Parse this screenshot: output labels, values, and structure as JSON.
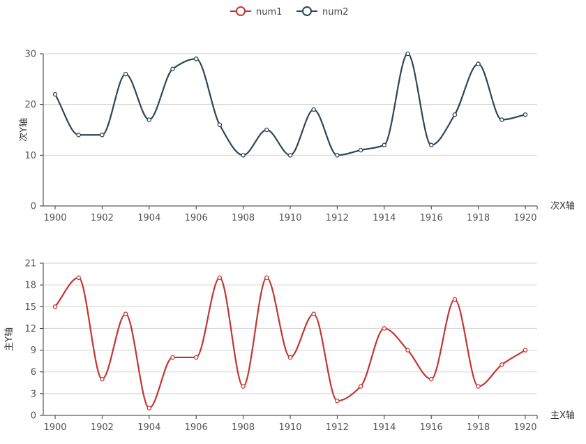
{
  "legend": [
    {
      "name": "num1",
      "color": "#c23531"
    },
    {
      "name": "num2",
      "color": "#2f4554"
    }
  ],
  "chart_data": [
    {
      "type": "line",
      "smooth": true,
      "series_name": "num2",
      "color": "#2f4554",
      "xlabel": "次X轴",
      "ylabel": "次Y轴",
      "x": [
        1900,
        1901,
        1902,
        1903,
        1904,
        1905,
        1906,
        1907,
        1908,
        1909,
        1910,
        1911,
        1912,
        1913,
        1914,
        1915,
        1916,
        1917,
        1918,
        1919,
        1920
      ],
      "x_ticks": [
        1900,
        1902,
        1904,
        1906,
        1908,
        1910,
        1912,
        1914,
        1916,
        1918,
        1920
      ],
      "values": [
        22,
        14,
        14,
        26,
        17,
        27,
        29,
        16,
        10,
        15,
        10,
        19,
        10,
        11,
        12,
        30,
        12,
        18,
        28,
        17,
        18
      ],
      "ylim": [
        0,
        30
      ],
      "y_ticks": [
        0,
        10,
        20,
        30
      ],
      "grid": true
    },
    {
      "type": "line",
      "smooth": true,
      "series_name": "num1",
      "color": "#c23531",
      "xlabel": "主X轴",
      "ylabel": "主Y轴",
      "x": [
        1900,
        1901,
        1902,
        1903,
        1904,
        1905,
        1906,
        1907,
        1908,
        1909,
        1910,
        1911,
        1912,
        1913,
        1914,
        1915,
        1916,
        1917,
        1918,
        1919,
        1920
      ],
      "x_ticks": [
        1900,
        1902,
        1904,
        1906,
        1908,
        1910,
        1912,
        1914,
        1916,
        1918,
        1920
      ],
      "values": [
        15,
        19,
        5,
        14,
        1,
        8,
        8,
        19,
        4,
        19,
        8,
        14,
        2,
        4,
        12,
        9,
        5,
        16,
        4,
        7,
        9
      ],
      "ylim": [
        0,
        21
      ],
      "y_ticks": [
        0,
        3,
        6,
        9,
        12,
        15,
        18,
        21
      ],
      "grid": true
    }
  ]
}
